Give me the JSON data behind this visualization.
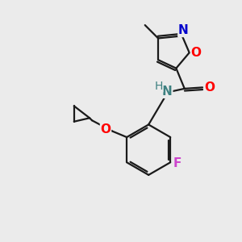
{
  "bg_color": "#ebebeb",
  "bond_color": "#1a1a1a",
  "bond_width": 1.6,
  "figure_size": [
    3.0,
    3.0
  ],
  "dpi": 100,
  "xlim": [
    0,
    10
  ],
  "ylim": [
    0,
    10
  ],
  "colors": {
    "O": "#ff0000",
    "N": "#0000cc",
    "N_amide": "#3d8080",
    "H": "#3d8080",
    "F": "#cc44cc",
    "C": "#1a1a1a"
  }
}
